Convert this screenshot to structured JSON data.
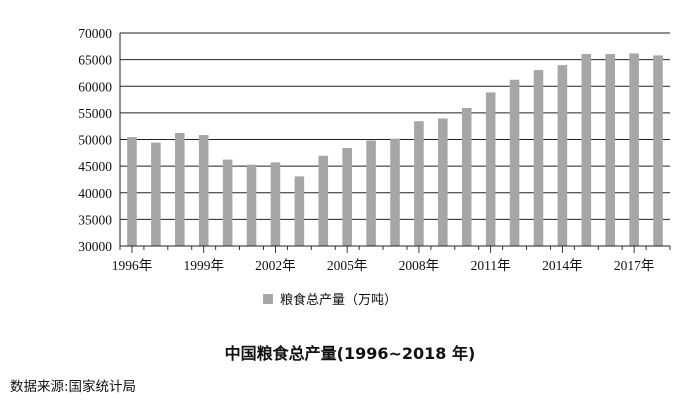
{
  "chart_data": {
    "type": "bar",
    "title": "中国粮食总产量(1996~2018 年)",
    "source": "数据来源:国家统计局",
    "legend": {
      "label": "粮食总产量（万吨）",
      "position": "bottom"
    },
    "x": [
      1996,
      1997,
      1998,
      1999,
      2000,
      2001,
      2002,
      2003,
      2004,
      2005,
      2006,
      2007,
      2008,
      2009,
      2010,
      2011,
      2012,
      2013,
      2014,
      2015,
      2016,
      2017,
      2018
    ],
    "x_tick_labels": [
      "1996年",
      "1999年",
      "2002年",
      "2005年",
      "2008年",
      "2011年",
      "2014年",
      "2017年"
    ],
    "x_tick_years": [
      1996,
      1999,
      2002,
      2005,
      2008,
      2011,
      2014,
      2017
    ],
    "values": [
      50454,
      49417,
      51230,
      50839,
      46218,
      45264,
      45706,
      43070,
      46947,
      48402,
      49804,
      50160,
      53434,
      53941,
      55911,
      58849,
      61223,
      63048,
      63965,
      66060,
      66044,
      66161,
      65789
    ],
    "ylim": [
      30000,
      70000
    ],
    "y_ticks": [
      30000,
      35000,
      40000,
      45000,
      50000,
      55000,
      60000,
      65000,
      70000
    ],
    "grid": "horizontal",
    "bar_color": "#a6a6a6"
  }
}
